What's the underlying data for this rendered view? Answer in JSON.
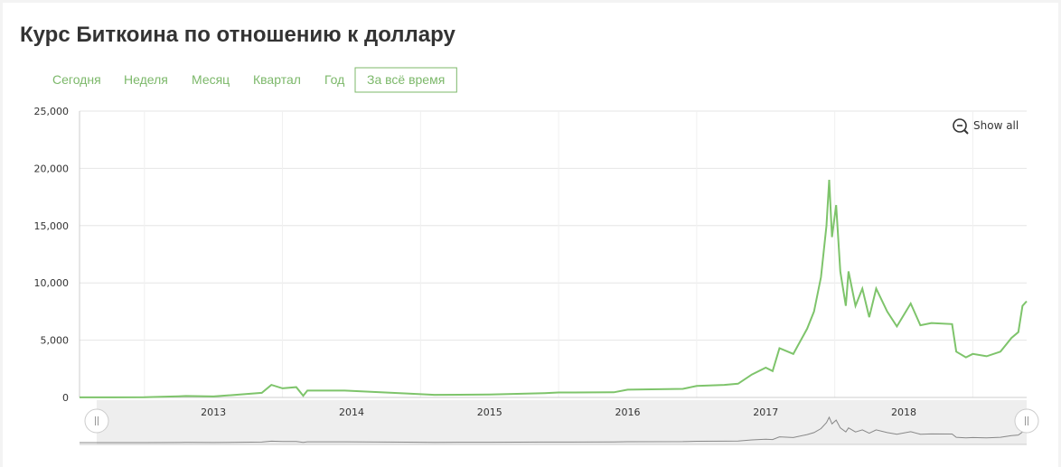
{
  "title": "Курс Биткоина по отношению к доллару",
  "tabs": [
    "Сегодня",
    "Неделя",
    "Месяц",
    "Квартал",
    "Год",
    "За всё время"
  ],
  "active_tab": 5,
  "zoom_button": "Show all",
  "chart_data": {
    "type": "line",
    "color": "#7ec46b",
    "x": [
      2012.53,
      2013.0,
      2013.25,
      2013.3,
      2013.5,
      2013.85,
      2013.92,
      2014.0,
      2014.1,
      2014.15,
      2014.18,
      2014.45,
      2014.9,
      2015.1,
      2015.5,
      2015.9,
      2016.0,
      2016.4,
      2016.5,
      2016.9,
      2017.0,
      2017.2,
      2017.3,
      2017.4,
      2017.5,
      2017.55,
      2017.6,
      2017.7,
      2017.8,
      2017.85,
      2017.9,
      2017.94,
      2017.96,
      2017.98,
      2018.01,
      2018.04,
      2018.08,
      2018.1,
      2018.15,
      2018.2,
      2018.25,
      2018.3,
      2018.38,
      2018.45,
      2018.55,
      2018.62,
      2018.7,
      2018.85,
      2018.88,
      2018.95,
      2019.0,
      2019.1,
      2019.2,
      2019.28,
      2019.33,
      2019.36,
      2019.39
    ],
    "values": [
      8,
      13,
      100,
      130,
      90,
      400,
      1100,
      800,
      900,
      150,
      600,
      600,
      350,
      230,
      250,
      380,
      430,
      450,
      680,
      750,
      1000,
      1100,
      1200,
      2000,
      2600,
      2300,
      4300,
      3800,
      6000,
      7500,
      10500,
      15000,
      19000,
      14000,
      16800,
      11000,
      8000,
      11000,
      8000,
      9500,
      7000,
      9500,
      7500,
      6200,
      8200,
      6300,
      6500,
      6400,
      4000,
      3500,
      3800,
      3600,
      4000,
      5200,
      5700,
      8000,
      8400
    ],
    "xlim": [
      2012.53,
      2019.39
    ],
    "xticks": [
      {
        "value": 2013.5,
        "label": "2013"
      },
      {
        "value": 2014.5,
        "label": "2014"
      },
      {
        "value": 2015.5,
        "label": "2015"
      },
      {
        "value": 2016.5,
        "label": "2016"
      },
      {
        "value": 2017.5,
        "label": "2017"
      },
      {
        "value": 2018.5,
        "label": "2018"
      }
    ],
    "xgrid": [
      2013,
      2014,
      2015,
      2016,
      2017,
      2018,
      2019
    ],
    "ylim": [
      0,
      25000
    ],
    "yticks": [
      0,
      {
        "value": 5000,
        "label": "5,000"
      },
      {
        "value": 10000,
        "label": "10,000"
      },
      {
        "value": 15000,
        "label": "15,000"
      },
      {
        "value": 20000,
        "label": "20,000"
      },
      {
        "value": 25000,
        "label": "25,000"
      }
    ],
    "grid": true
  }
}
